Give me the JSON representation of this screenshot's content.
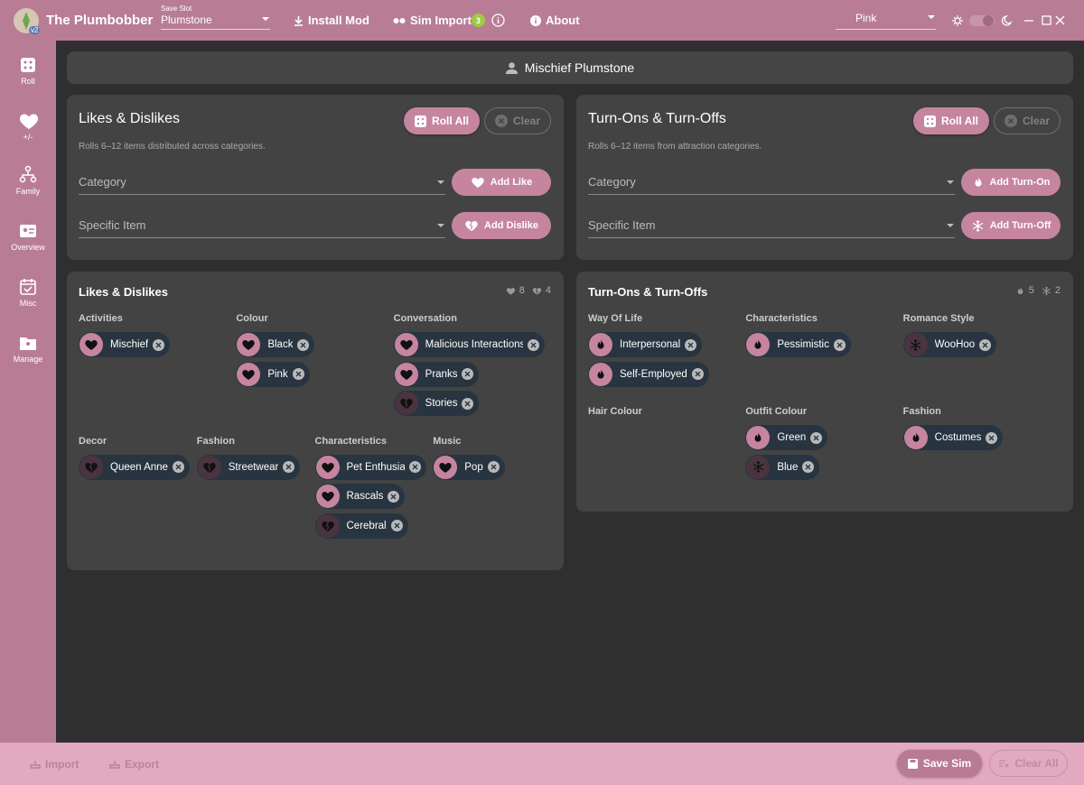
{
  "app": {
    "title": "The Plumbobber",
    "version": "v2",
    "save_slot_label": "Save Slot",
    "save_slot": "Plumstone",
    "install_mod": "Install Mod",
    "sim_import": "Sim Import",
    "sim_import_count": 3,
    "about": "About",
    "theme": "Pink"
  },
  "sidebar": [
    {
      "label": "Roll"
    },
    {
      "label": "+/-"
    },
    {
      "label": "Family"
    },
    {
      "label": "Overview"
    },
    {
      "label": "Misc"
    },
    {
      "label": "Manage"
    }
  ],
  "sim_name": "Mischief Plumstone",
  "panels": [
    {
      "title": "Likes & Dislikes",
      "roll_all": "Roll All",
      "clear": "Clear",
      "hint": "Rolls 6–12 items distributed across categories.",
      "fields": [
        {
          "placeholder": "Category",
          "button": "Add Like"
        },
        {
          "placeholder": "Specific Item",
          "button": "Add Dislike"
        }
      ]
    },
    {
      "title": "Turn-Ons & Turn-Offs",
      "roll_all": "Roll All",
      "clear": "Clear",
      "hint": "Rolls 6–12 items from attraction categories.",
      "fields": [
        {
          "placeholder": "Category",
          "button": "Add Turn-On"
        },
        {
          "placeholder": "Specific Item",
          "button": "Add Turn-Off"
        }
      ]
    }
  ],
  "results": [
    {
      "title": "Likes & Dislikes",
      "counts": [
        {
          "kind": "like",
          "value": 8
        },
        {
          "kind": "dislike",
          "value": 4
        }
      ],
      "rows": [
        [
          {
            "label": "Activities",
            "items": [
              {
                "name": "Mischief",
                "kind": "like"
              }
            ]
          },
          {
            "label": "Colour",
            "items": [
              {
                "name": "Black",
                "kind": "like"
              },
              {
                "name": "Pink",
                "kind": "like"
              }
            ]
          },
          {
            "label": "Conversation",
            "items": [
              {
                "name": "Malicious Interactions",
                "kind": "like"
              },
              {
                "name": "Pranks",
                "kind": "like"
              },
              {
                "name": "Stories",
                "kind": "dislike"
              }
            ]
          }
        ],
        [
          {
            "label": "Decor",
            "items": [
              {
                "name": "Queen Anne",
                "kind": "dislike"
              }
            ]
          },
          {
            "label": "Fashion",
            "items": [
              {
                "name": "Streetwear",
                "kind": "dislike"
              }
            ]
          },
          {
            "label": "Characteristics",
            "items": [
              {
                "name": "Pet Enthusiast",
                "kind": "like"
              },
              {
                "name": "Rascals",
                "kind": "like"
              },
              {
                "name": "Cerebral",
                "kind": "dislike"
              }
            ]
          },
          {
            "label": "Music",
            "items": [
              {
                "name": "Pop",
                "kind": "like"
              }
            ]
          }
        ]
      ]
    },
    {
      "title": "Turn-Ons & Turn-Offs",
      "counts": [
        {
          "kind": "turn-on",
          "value": 5
        },
        {
          "kind": "turn-off",
          "value": 2
        }
      ],
      "rows": [
        [
          {
            "label": "Way Of Life",
            "items": [
              {
                "name": "Interpersonal",
                "kind": "turn-on"
              },
              {
                "name": "Self-Employed",
                "kind": "turn-on"
              }
            ]
          },
          {
            "label": "Characteristics",
            "items": [
              {
                "name": "Pessimistic",
                "kind": "turn-on"
              }
            ]
          },
          {
            "label": "Romance Style",
            "items": [
              {
                "name": "WooHoo",
                "kind": "turn-off"
              }
            ]
          }
        ],
        [
          {
            "label": "Hair Colour",
            "items": []
          },
          {
            "label": "Outfit Colour",
            "items": [
              {
                "name": "Green",
                "kind": "turn-on"
              },
              {
                "name": "Blue",
                "kind": "turn-off"
              }
            ]
          },
          {
            "label": "Fashion",
            "items": [
              {
                "name": "Costumes",
                "kind": "turn-on"
              }
            ]
          }
        ]
      ]
    }
  ],
  "footer": {
    "import": "Import",
    "export": "Export",
    "save": "Save Sim",
    "clear_all": "Clear All"
  }
}
